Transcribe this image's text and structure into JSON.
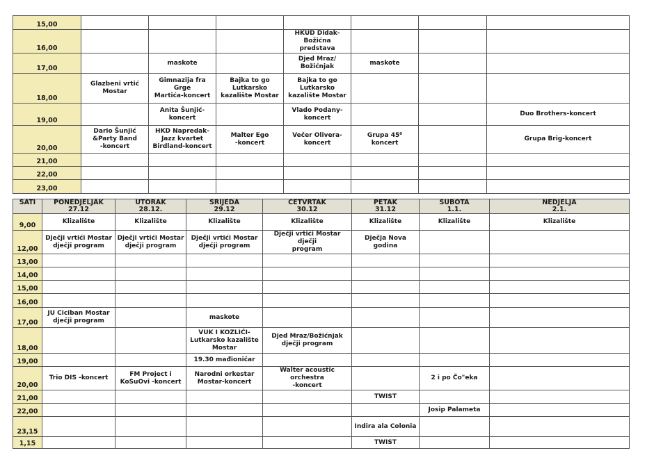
{
  "top_table": {
    "rows": [
      {
        "time": "15,00",
        "cells": [
          "",
          "",
          "",
          "",
          "",
          "",
          ""
        ]
      },
      {
        "time": "16,00",
        "cells": [
          "",
          "",
          "",
          "HKUD Didak-\nBožićna predstava",
          "",
          "",
          ""
        ]
      },
      {
        "time": "17,00",
        "cells": [
          "",
          "maskote",
          "",
          "Djed Mraz/\nBožićnjak",
          "maskote",
          "",
          ""
        ]
      },
      {
        "time": "18,00",
        "cells": [
          "Glazbeni vrtić\nMostar",
          "Gimnazija fra Grge\nMartića-koncert",
          "Bajka to go\nLutkarsko\nkazalište Mostar",
          "Bajka to go\nLutkarsko\nkazalište Mostar",
          "",
          "",
          ""
        ]
      },
      {
        "time": "19,00",
        "cells": [
          "",
          "Anita Šunjić-\nkoncert",
          "",
          "Vlado Podany-\nkoncert",
          "",
          "",
          "Duo Brothers-koncert"
        ]
      },
      {
        "time": "20,00",
        "cells": [
          "Dario Šunjić\n&Party  Band\n-koncert",
          "HKD Napredak-\nJazz kvartet\nBirdland-koncert",
          "Malter Ego\n-koncert",
          "Večer Olivera-\nkoncert",
          "Grupa  45⁰\nkoncert",
          "",
          "Grupa Brig-koncert"
        ]
      },
      {
        "time": "21,00",
        "cells": [
          "",
          "",
          "",
          "",
          "",
          "",
          ""
        ]
      },
      {
        "time": "22,00",
        "cells": [
          "",
          "",
          "",
          "",
          "",
          "",
          ""
        ]
      },
      {
        "time": "23,00",
        "cells": [
          "",
          "",
          "",
          "",
          "",
          "",
          ""
        ]
      }
    ]
  },
  "bottom_table": {
    "headers": [
      "SATI",
      "PONEDJELJAK\n27.12",
      "UTORAK\n28.12.",
      "SRIJEDA\n29.12",
      "ČETVRTAK\n30.12",
      "PETAK\n31.12",
      "SUBOTA\n1.1.",
      "NEDJELJA\n2.1."
    ],
    "rows": [
      {
        "time": "9,00",
        "cells": [
          "Klizalište",
          "Klizalište",
          "Klizalište",
          "Klizalište",
          "Klizalište",
          "Klizalište",
          "Klizalište"
        ]
      },
      {
        "time": "12,00",
        "cells": [
          "Dječji vrtići Mostar\ndječji program",
          "Dječji vrtići Mostar\ndječji program",
          "Dječji vrtići Mostar\ndječji program",
          "Dječji vrtići Mostar dječji\nprogram",
          "Dječja Nova\ngodina",
          "",
          ""
        ]
      },
      {
        "time": "13,00",
        "cells": [
          "",
          "",
          "",
          "",
          "",
          "",
          ""
        ]
      },
      {
        "time": "14,00",
        "cells": [
          "",
          "",
          "",
          "",
          "",
          "",
          ""
        ]
      },
      {
        "time": "15,00",
        "cells": [
          "",
          "",
          "",
          "",
          "",
          "",
          ""
        ]
      },
      {
        "time": "16,00",
        "cells": [
          "",
          "",
          "",
          "",
          "",
          "",
          ""
        ]
      },
      {
        "time": "17,00",
        "cells": [
          "JU Ciciban Mostar\ndječji program",
          "",
          "maskote",
          "",
          "",
          "",
          ""
        ]
      },
      {
        "time": "18,00",
        "cells": [
          "",
          "",
          "VUK I KOZLIĆI-\nLutkarsko kazalište\nMostar",
          "Djed Mraz/Božićnjak\ndječji program",
          "",
          "",
          ""
        ]
      },
      {
        "time": "19,00",
        "cells": [
          "",
          "",
          "19.30 mađioničar",
          "",
          "",
          "",
          ""
        ]
      },
      {
        "time": "20,00",
        "cells": [
          "Trio DIS -koncert",
          "FM Project i\nKoSuOvi -koncert",
          "Narodni orkestar\nMostar-koncert",
          "Walter acoustic orchestra\n-koncert",
          "",
          "2 i po Čo\"eka",
          ""
        ]
      },
      {
        "time": "21,00",
        "cells": [
          "",
          "",
          "",
          "",
          "TWIST",
          "",
          ""
        ]
      },
      {
        "time": "22,00",
        "cells": [
          "",
          "",
          "",
          "",
          "",
          "Josip Palameta",
          ""
        ]
      },
      {
        "time": "23,15",
        "cells": [
          "",
          "",
          "",
          "",
          "Indira ala Colonia",
          "",
          ""
        ]
      },
      {
        "time": "1,15",
        "cells": [
          "",
          "",
          "",
          "",
          "TWIST",
          "",
          ""
        ]
      }
    ]
  }
}
